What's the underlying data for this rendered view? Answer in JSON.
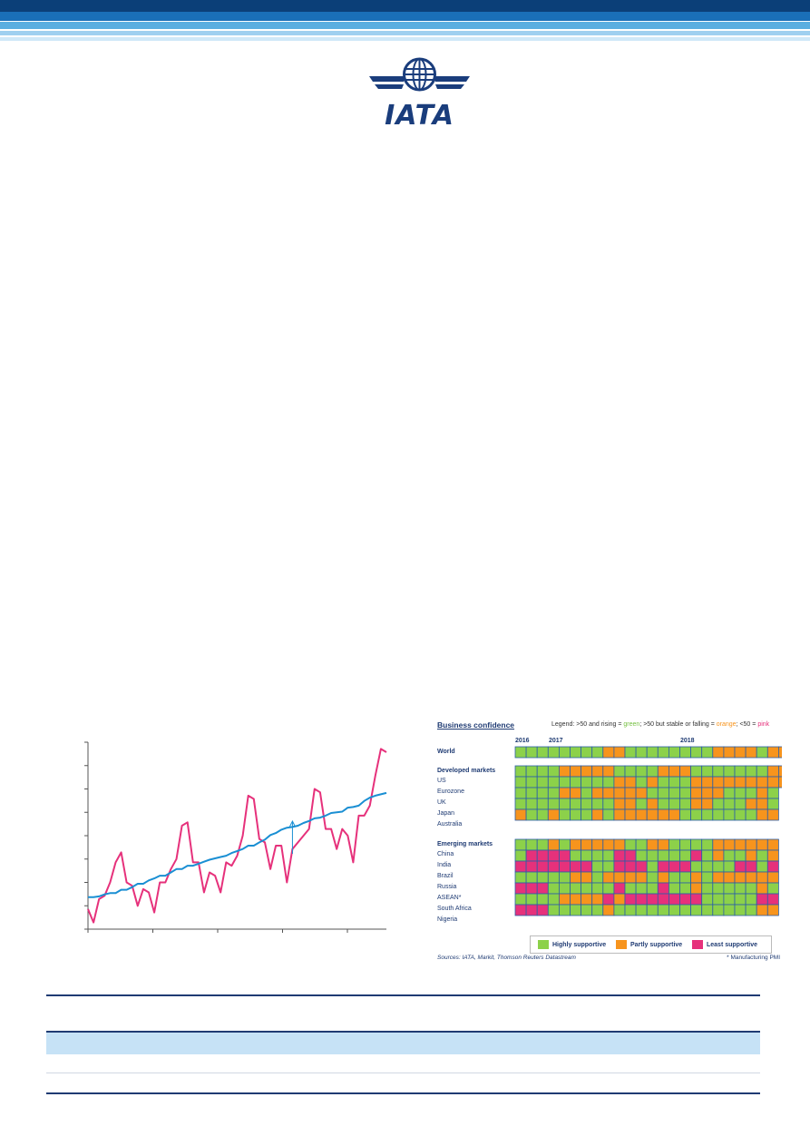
{
  "header": {
    "logo_text": "IATA",
    "brand_colors": {
      "navy": "#0b3f78",
      "blue": "#1a7fc4",
      "light_blue": "#6cb4e4",
      "pale_blue": "#b7dbf3"
    }
  },
  "left_chart": {
    "chart_data": {
      "type": "line",
      "title": "",
      "xlabel": "",
      "ylabel": "",
      "grid": false,
      "series": [
        {
          "color": "#e6317b",
          "values": [
            3,
            1,
            4.5,
            5,
            7,
            10,
            11.5,
            7,
            6.5,
            3.5,
            6,
            5.5,
            2.5,
            7,
            7,
            9,
            10.5,
            15.5,
            16,
            10,
            10,
            5.5,
            8.5,
            8,
            5.5,
            10,
            9.5,
            11,
            14,
            20,
            19.5,
            13.5,
            13,
            9,
            12.5,
            12.5,
            7,
            12,
            13,
            14,
            15,
            21,
            20.5,
            15,
            15,
            12,
            15,
            14,
            10,
            17,
            17,
            18.5,
            23,
            27,
            26.5
          ]
        },
        {
          "color": "#1a8fd3",
          "values": [
            4.8,
            4.8,
            4.9,
            5.2,
            5.4,
            5.4,
            5.9,
            5.9,
            6.3,
            6.8,
            6.8,
            7.3,
            7.6,
            8,
            8,
            8.5,
            9,
            9,
            9.5,
            9.5,
            9.8,
            10.1,
            10.4,
            10.6,
            10.8,
            11,
            11.4,
            11.7,
            12,
            12.5,
            12.5,
            13,
            13.4,
            14.1,
            14.4,
            14.9,
            15.2,
            15.3,
            15.5,
            15.9,
            16.2,
            16.6,
            16.7,
            17,
            17.4,
            17.5,
            17.6,
            18.2,
            18.3,
            18.5,
            19.2,
            19.7,
            20,
            20.2,
            20.4
          ]
        }
      ],
      "ylim": [
        0,
        28
      ],
      "annotation": "arrow"
    }
  },
  "business_confidence": {
    "title": "Business confidence",
    "legend_prefix": "Legend: >50 and rising = ",
    "legend_green": "green",
    "legend_mid": "; >50 but stable or falling  = ",
    "legend_orange": "orange",
    "legend_mid2": "; <50 = ",
    "legend_pink": "pink",
    "years": [
      "2016",
      "2017",
      "2018"
    ],
    "colors": {
      "G": "#8cd14a",
      "O": "#f7941d",
      "P": "#e6317b",
      "border": "#2b5ea8"
    },
    "world": {
      "label": "World",
      "cells": "GGGGGGGGOOGGGGGGGGOOOOGOO"
    },
    "developed_header": "Developed markets",
    "developed": [
      {
        "label": "US",
        "cells": "GGGGOOOOOGGGGOOOGGGGGGGOO"
      },
      {
        "label": "Eurozone",
        "cells": "GGGGGGGGGOOGOGGGOOOOOOOOO"
      },
      {
        "label": "UK",
        "cells": "GGGGOOGOOOOOGGGGOOOGGGOG"
      },
      {
        "label": "Japan",
        "cells": "GGGGGGGGGOOGOGGGOOGGGOOG"
      },
      {
        "label": "Australia",
        "cells": "OGGOGGGOGOOOOOOGGGGGGGOO"
      }
    ],
    "emerging_header": "Emerging markets",
    "emerging": [
      {
        "label": "China",
        "cells": "GGGOGOOOOOGGOOGGGGOOOOOO"
      },
      {
        "label": "India",
        "cells": "GPPPPGGGGPPGGGGGPGOGGOGO"
      },
      {
        "label": "Brazil",
        "cells": "PPPPPPPGGPPPGPPPGGGGPPGP"
      },
      {
        "label": "Russia",
        "cells": "GGGGGOOGOOOOGOGGOGOOOOOO"
      },
      {
        "label": "ASEAN*",
        "cells": "PPPGGGGGGPGGGPGGOGGGGGOG"
      },
      {
        "label": "South Africa",
        "cells": "GGGGOOOOPOPPPPPPPGGGGGPP"
      },
      {
        "label": "Nigeria",
        "cells": "PPPGGGGGOGGGGGGGGGGGGGOO"
      }
    ],
    "key": [
      {
        "label": "Highly supportive",
        "color": "#8cd14a"
      },
      {
        "label": "Partly supportive",
        "color": "#f7941d"
      },
      {
        "label": "Least supportive",
        "color": "#e6317b"
      }
    ],
    "sources": "Sources: IATA, Markit, Thomson Reuters Datastream",
    "note": "* Manufacturing PMI"
  }
}
